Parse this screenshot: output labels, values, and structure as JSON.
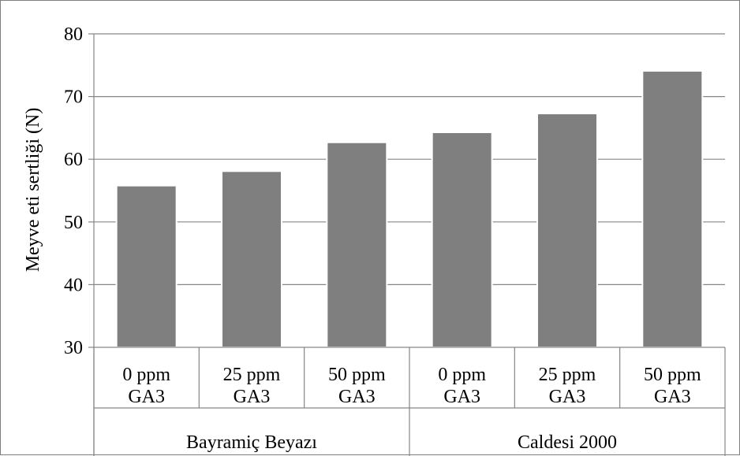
{
  "chart_data": {
    "type": "bar",
    "title": "",
    "xlabel": "",
    "ylabel": "Meyve eti sertliği (N)",
    "ylim": [
      30,
      80
    ],
    "yticks": [
      30,
      40,
      50,
      60,
      70,
      80
    ],
    "grid": true,
    "legend": "none",
    "bar_color": "#7f7f7f",
    "categories": [
      {
        "line1": "0 ppm",
        "line2": "GA3"
      },
      {
        "line1": "25 ppm",
        "line2": "GA3"
      },
      {
        "line1": "50 ppm",
        "line2": "GA3"
      },
      {
        "line1": "0 ppm",
        "line2": "GA3"
      },
      {
        "line1": "25 ppm",
        "line2": "GA3"
      },
      {
        "line1": "50 ppm",
        "line2": "GA3"
      }
    ],
    "groups": [
      {
        "label": "Bayramiç Beyazı",
        "count": 3
      },
      {
        "label": "Caldesi 2000",
        "count": 3
      }
    ],
    "values": [
      55.8,
      58.1,
      62.7,
      64.3,
      67.3,
      74.1
    ]
  }
}
